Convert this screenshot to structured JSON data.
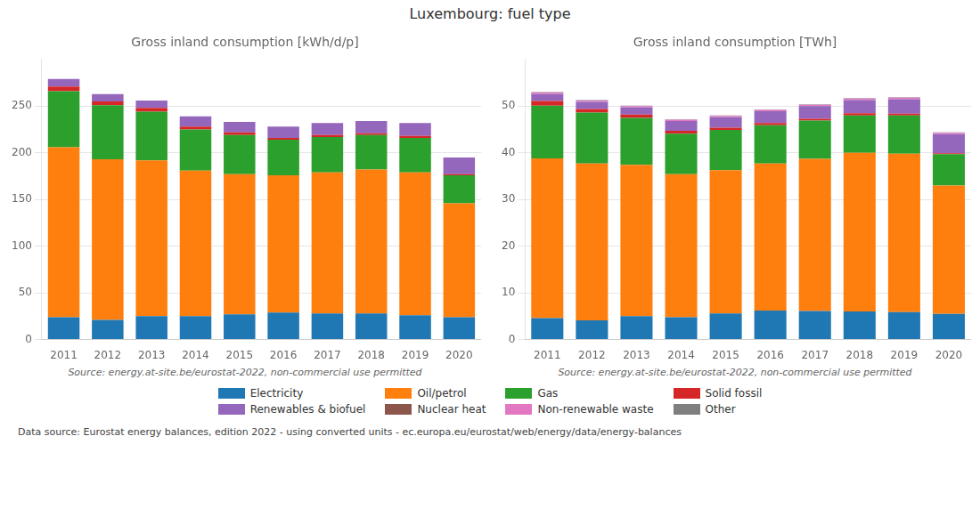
{
  "title": "Luxembourg: fuel type",
  "annotations": [
    "Data source: Eurostat energy balances, edition 2022 - using converted units - ec.europa.eu/eurostat/web/energy/data/energy-balances"
  ],
  "chart_data": [
    {
      "type": "bar",
      "title": "Gross inland consumption [kWh/d/p]",
      "stacked": true,
      "grid": true,
      "legend": "bottom",
      "annotations": [
        "Source: energy.at-site.be/eurostat-2022, non-commercial use permitted"
      ],
      "categories": [
        "2011",
        "2012",
        "2013",
        "2014",
        "2015",
        "2016",
        "2017",
        "2018",
        "2019",
        "2020"
      ],
      "ylim": [
        0,
        300
      ],
      "yticks": [
        0,
        50,
        100,
        150,
        200,
        250
      ],
      "series": [
        {
          "name": "Electricity",
          "color": "#1f77b4",
          "values": [
            24,
            21,
            25,
            25,
            27,
            29,
            28,
            28,
            26,
            24
          ]
        },
        {
          "name": "Oil/petrol",
          "color": "#ff7f0e",
          "values": [
            182,
            172,
            167,
            156,
            150,
            147,
            151,
            154,
            153,
            122
          ]
        },
        {
          "name": "Gas",
          "color": "#2ca02c",
          "values": [
            60,
            58,
            52,
            44,
            42,
            38,
            38,
            37,
            37,
            30
          ]
        },
        {
          "name": "Solid fossil",
          "color": "#d62728",
          "values": [
            5,
            4,
            4,
            3,
            3,
            2,
            2,
            2,
            2,
            1
          ]
        },
        {
          "name": "Renewables & biofuel",
          "color": "#9467bd",
          "values": [
            8,
            8,
            8,
            11,
            11,
            12,
            13,
            13,
            14,
            18
          ]
        },
        {
          "name": "Nuclear heat",
          "color": "#8c564b",
          "values": [
            0,
            0,
            0,
            0,
            0,
            0,
            0,
            0,
            0,
            0
          ]
        },
        {
          "name": "Non-renewable waste",
          "color": "#e377c2",
          "values": [
            0,
            0,
            0,
            0,
            0,
            0,
            0,
            0,
            0,
            0
          ]
        },
        {
          "name": "Other",
          "color": "#7f7f7f",
          "values": [
            0,
            0,
            0,
            0,
            0,
            0,
            0,
            0,
            0,
            0
          ]
        }
      ]
    },
    {
      "type": "bar",
      "title": "Gross inland consumption [TWh]",
      "stacked": true,
      "grid": true,
      "legend": "bottom",
      "annotations": [
        "Source: energy.at-site.be/eurostat-2022, non-commercial use permitted"
      ],
      "categories": [
        "2011",
        "2012",
        "2013",
        "2014",
        "2015",
        "2016",
        "2017",
        "2018",
        "2019",
        "2020"
      ],
      "ylim": [
        0,
        60
      ],
      "yticks": [
        0,
        10,
        20,
        30,
        40,
        50
      ],
      "series": [
        {
          "name": "Electricity",
          "color": "#1f77b4",
          "values": [
            4.6,
            4.1,
            5.0,
            4.8,
            5.6,
            6.2,
            6.1,
            6.0,
            5.9,
            5.5
          ]
        },
        {
          "name": "Oil/petrol",
          "color": "#ff7f0e",
          "values": [
            34.2,
            33.6,
            32.4,
            30.6,
            30.7,
            31.5,
            32.6,
            34.0,
            33.9,
            27.5
          ]
        },
        {
          "name": "Gas",
          "color": "#2ca02c",
          "values": [
            11.3,
            10.9,
            10.1,
            8.7,
            8.6,
            8.2,
            8.2,
            8.0,
            8.2,
            6.7
          ]
        },
        {
          "name": "Solid fossil",
          "color": "#d62728",
          "values": [
            1.0,
            0.8,
            0.7,
            0.6,
            0.5,
            0.5,
            0.4,
            0.5,
            0.4,
            0.2
          ]
        },
        {
          "name": "Renewables & biofuel",
          "color": "#9467bd",
          "values": [
            1.5,
            1.5,
            1.5,
            2.1,
            2.2,
            2.5,
            2.7,
            2.8,
            3.1,
            4.1
          ]
        },
        {
          "name": "Nuclear heat",
          "color": "#8c564b",
          "values": [
            0,
            0,
            0,
            0,
            0,
            0,
            0,
            0,
            0,
            0
          ]
        },
        {
          "name": "Non-renewable waste",
          "color": "#e377c2",
          "values": [
            0.3,
            0.3,
            0.3,
            0.3,
            0.3,
            0.3,
            0.3,
            0.3,
            0.3,
            0.3
          ]
        },
        {
          "name": "Other",
          "color": "#7f7f7f",
          "values": [
            0.1,
            0.1,
            0.1,
            0.1,
            0.1,
            0.1,
            0.1,
            0.1,
            0.1,
            0.1
          ]
        }
      ]
    }
  ]
}
